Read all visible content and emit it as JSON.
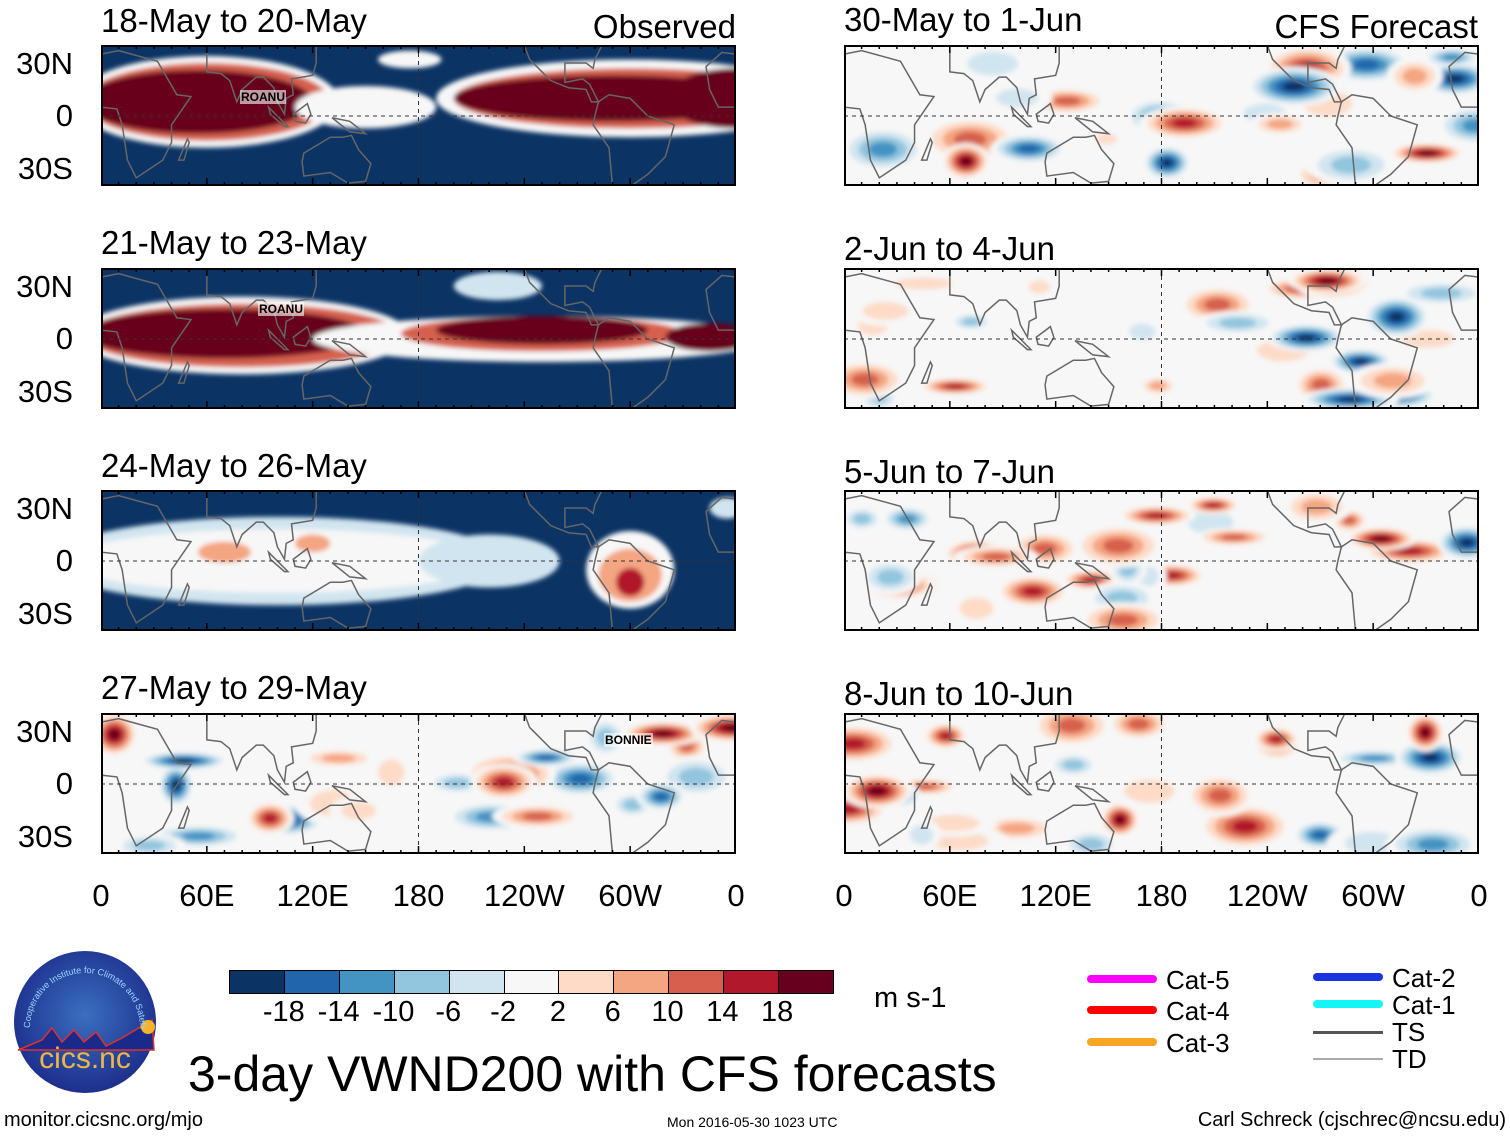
{
  "observed_label": "Observed",
  "forecast_label": "CFS Forecast",
  "panels_observed": [
    {
      "title": "18-May to 20-May",
      "storm": "ROANU"
    },
    {
      "title": "21-May to 23-May",
      "storm": "ROANU"
    },
    {
      "title": "24-May to 26-May",
      "storm": null
    },
    {
      "title": "27-May to 29-May",
      "storm": "BONNIE"
    }
  ],
  "panels_forecast": [
    {
      "title": "30-May to 1-Jun"
    },
    {
      "title": "2-Jun to 4-Jun"
    },
    {
      "title": "5-Jun to 7-Jun"
    },
    {
      "title": "8-Jun to 10-Jun"
    }
  ],
  "lat_labels": [
    "30N",
    "0",
    "30S"
  ],
  "lon_labels": [
    "0",
    "60E",
    "120E",
    "180",
    "120W",
    "60W",
    "0"
  ],
  "colorbar": {
    "colors": [
      "#0b3364",
      "#2166ac",
      "#4393c3",
      "#92c5de",
      "#d1e5f0",
      "#f7f7f7",
      "#fddbc7",
      "#f4a582",
      "#d6604d",
      "#b2182b",
      "#67001f"
    ],
    "ticks": [
      "-18",
      "-14",
      "-10",
      "-6",
      "-2",
      "2",
      "6",
      "10",
      "14",
      "18"
    ],
    "units": "m s-1"
  },
  "legend": [
    {
      "label": "Cat-5",
      "color": "#ff00ff"
    },
    {
      "label": "Cat-4",
      "color": "#ff0000"
    },
    {
      "label": "Cat-3",
      "color": "#f5a623"
    },
    {
      "label": "Cat-2",
      "color": "#1c34e0"
    },
    {
      "label": "Cat-1",
      "color": "#14f5f5"
    },
    {
      "label": "TS",
      "color": "#555555"
    },
    {
      "label": "TD",
      "color": "#aaaaaa"
    }
  ],
  "main_title": "3-day VWND200 with CFS forecasts",
  "footer": {
    "url": "monitor.cicsnc.org/mjo",
    "timestamp": "Mon 2016-05-30 1023 UTC",
    "credit": "Carl Schreck (cjschrec@ncsu.edu)"
  },
  "logo": {
    "ring_text": "Cooperative Institute for Climate and Satellites",
    "name": "cics.nc"
  }
}
